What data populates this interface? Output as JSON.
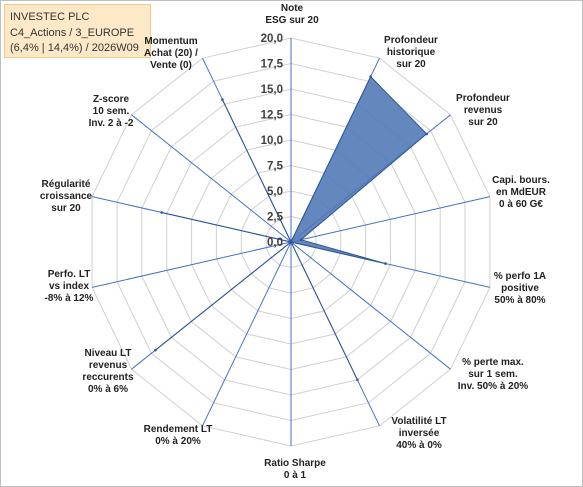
{
  "header": {
    "line1": "INVESTEC PLC",
    "line2": "C4_Actions / 3_EUROPE",
    "line3": "(6,4% | 14,4%) / 2026W09"
  },
  "colors": {
    "fill": "#4f76b5",
    "stroke": "#2e5597",
    "grid": "#d0d0d0",
    "spoke": "#4472c4",
    "header_bg": "#fde9c8"
  },
  "chart_data": {
    "type": "radar",
    "title": "",
    "range": [
      0,
      20
    ],
    "ticks": [
      "0,0",
      "2,5",
      "5,0",
      "7,5",
      "10,0",
      "12,5",
      "15,0",
      "17,5",
      "20,0"
    ],
    "grid": true,
    "axes": [
      {
        "label": [
          "Note",
          "ESG sur 20"
        ],
        "value": 0
      },
      {
        "label": [
          "Profondeur",
          "historique",
          "sur 20"
        ],
        "value": 18
      },
      {
        "label": [
          "Profondeur",
          "revenus",
          "sur 20"
        ],
        "value": 17
      },
      {
        "label": [
          "Capi. bours.",
          "en MdEUR",
          "0 à 60 G€"
        ],
        "value": 1
      },
      {
        "label": [
          "% perfo 1A",
          "positive",
          "50% à 80%"
        ],
        "value": 9.5
      },
      {
        "label": [
          "% perte max.",
          "sur 1 sem.",
          "Inv. 50% à 20%"
        ],
        "value": 0
      },
      {
        "label": [
          "Volatilité LT",
          "inversée",
          "40% à 0%"
        ],
        "value": 15
      },
      {
        "label": [
          "Ratio Sharpe",
          "0 à 1"
        ],
        "value": 0
      },
      {
        "label": [
          "Rendement LT",
          "0% à 20%"
        ],
        "value": 0
      },
      {
        "label": [
          "Niveau LT",
          "revenus",
          "reccurents",
          "0% à 6%"
        ],
        "value": 17
      },
      {
        "label": [
          "Perfo. LT",
          "vs index",
          "-8% à 12%"
        ],
        "value": 0
      },
      {
        "label": [
          "Régularité",
          "croissance",
          "sur 20"
        ],
        "value": 13
      },
      {
        "label": [
          "Z-score",
          "10 sem.",
          "Inv. 2 à -2"
        ],
        "value": 0
      },
      {
        "label": [
          "Momentum",
          "Achat (20) /",
          "Vente (0)"
        ],
        "value": 15.5
      }
    ]
  }
}
